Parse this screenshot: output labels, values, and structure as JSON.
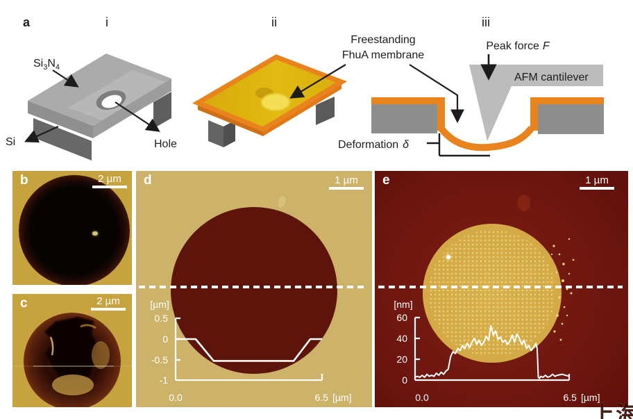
{
  "panel_a": {
    "label": "a",
    "i": {
      "label": "i",
      "si3n4": [
        "Si",
        "3",
        "N",
        "4"
      ],
      "si": "Si",
      "hole": "Hole"
    },
    "ii": {
      "label": "ii",
      "membrane_line1": "Freestanding",
      "membrane_line2": "FhuA membrane"
    },
    "iii": {
      "label": "iii",
      "peak_force": "Peak force",
      "peak_force_symbol": "F",
      "cantilever": "AFM cantilever",
      "deformation": "Deformation",
      "deformation_symbol": "δ"
    }
  },
  "panel_b": {
    "label": "b",
    "scalebar": "2 µm"
  },
  "panel_c": {
    "label": "c",
    "scalebar": "2 µm"
  },
  "panel_d": {
    "label": "d",
    "scalebar": "1 µm"
  },
  "panel_e": {
    "label": "e",
    "scalebar": "1 µm"
  },
  "watermark": "上海",
  "colors": {
    "membrane_orange": "#E8831D",
    "membrane_gold": "#DDB30E",
    "si3n4_gray": "#ABABAB",
    "silicon_gray": "#5E5E5E",
    "cantilever_gray": "#BCBCBC",
    "afm_gold_bg": "#C6A33E",
    "afm_tan_bg": "#CDB269",
    "afm_dark_red": "#5C140B",
    "afm_maroon_bg": "#701710",
    "afm_circle_gold": "#D2A945",
    "profile_line": "#FFFFFF"
  },
  "chart_data": [
    {
      "type": "line",
      "panel": "d",
      "ylabel": "[µm]",
      "xlabel": "[µm]",
      "xlim": [
        0.0,
        6.5
      ],
      "ylim": [
        -1,
        0.5
      ],
      "ytick_labels": [
        "0.5",
        "0",
        "-0.5",
        "-1"
      ],
      "xtick_labels": [
        "0.0",
        "6.5"
      ],
      "line_color": "#FFFFFF",
      "x": [
        0,
        0.89,
        1.69,
        5.24,
        5.98,
        6.5
      ],
      "y": [
        0,
        0,
        -0.53,
        -0.53,
        0,
        0
      ]
    },
    {
      "type": "line",
      "panel": "e",
      "ylabel": "[nm]",
      "xlabel": "[µm]",
      "xlim": [
        0.0,
        6.5
      ],
      "ylim": [
        0,
        60
      ],
      "ytick_labels": [
        "60",
        "40",
        "20",
        "0"
      ],
      "xtick_labels": [
        "0.0",
        "6.5"
      ],
      "line_color": "#FFFFFF",
      "x": [
        0,
        0.1,
        0.2,
        0.3,
        0.4,
        0.5,
        0.6,
        0.7,
        0.8,
        0.9,
        1.0,
        1.1,
        1.2,
        1.3,
        1.4,
        1.5,
        1.6,
        1.7,
        1.8,
        1.9,
        2.0,
        2.1,
        2.2,
        2.3,
        2.4,
        2.5,
        2.6,
        2.7,
        2.8,
        2.9,
        3.0,
        3.1,
        3.2,
        3.3,
        3.4,
        3.5,
        3.6,
        3.7,
        3.8,
        3.9,
        4.0,
        4.1,
        4.2,
        4.3,
        4.4,
        4.5,
        4.6,
        4.7,
        4.8,
        4.9,
        5.0,
        5.1,
        5.15,
        5.2,
        5.25,
        5.3,
        5.4,
        5.5,
        5.6,
        5.7,
        5.8,
        5.9,
        6.0,
        6.2,
        6.5
      ],
      "y": [
        2,
        3,
        2,
        4,
        2,
        5,
        3,
        4,
        3,
        6,
        4,
        7,
        5,
        8,
        10,
        22,
        27,
        25,
        30,
        28,
        33,
        30,
        35,
        31,
        36,
        40,
        34,
        38,
        33,
        36,
        42,
        38,
        52,
        43,
        47,
        39,
        41,
        36,
        38,
        34,
        37,
        43,
        36,
        44,
        40,
        34,
        38,
        30,
        33,
        28,
        31,
        35,
        30,
        2,
        1,
        3,
        2,
        4,
        2,
        3,
        5,
        3,
        4,
        5,
        3
      ]
    }
  ]
}
